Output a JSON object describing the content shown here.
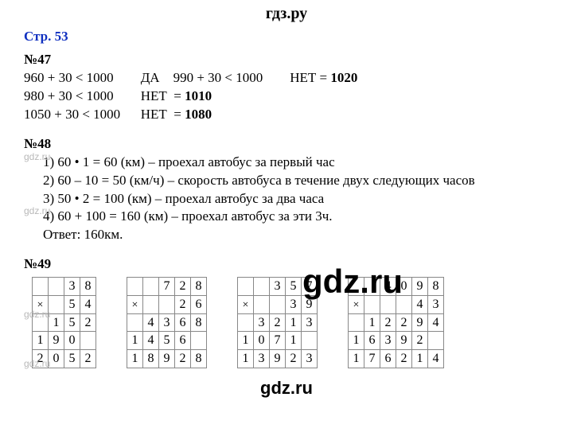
{
  "header": "гдз.ру",
  "page_ref": "Стр. 53",
  "ex47": {
    "num": "№47",
    "rows": [
      {
        "a": "960 + 30 < 1000",
        "b": "ДА",
        "c": "990 + 30 < 1000",
        "d": "НЕТ =",
        "e": "1020"
      },
      {
        "a": "980 + 30 < 1000",
        "b": "НЕТ  =",
        "e": "1010"
      },
      {
        "a": "1050 + 30 < 1000",
        "b": "НЕТ  =",
        "e": "1080"
      }
    ]
  },
  "ex48": {
    "num": "№48",
    "lines": [
      "1) 60 • 1 = 60 (км) – проехал автобус за первый час",
      "2) 60 – 10 = 50 (км/ч) – скорость автобуса в течение двух следующих часов",
      "3) 50 • 2 = 100 (км) – проехал автобус за два часа",
      "4) 60 + 100 = 160 (км) – проехал автобус за эти 3ч."
    ],
    "answer": "Ответ: 160км."
  },
  "ex49": {
    "num": "№49",
    "tables": [
      {
        "cols": 4,
        "grid": [
          [
            " ",
            " ",
            "3",
            "8"
          ],
          [
            "×",
            " ",
            "5",
            "4"
          ],
          [
            " ",
            "1",
            "5",
            "2"
          ],
          [
            "1",
            "9",
            "0",
            " "
          ],
          [
            "2",
            "0",
            "5",
            "2"
          ]
        ]
      },
      {
        "cols": 5,
        "grid": [
          [
            " ",
            " ",
            "7",
            "2",
            "8"
          ],
          [
            "×",
            " ",
            " ",
            "2",
            "6"
          ],
          [
            " ",
            "4",
            "3",
            "6",
            "8"
          ],
          [
            "1",
            "4",
            "5",
            "6",
            " "
          ],
          [
            "1",
            "8",
            "9",
            "2",
            "8"
          ]
        ]
      },
      {
        "cols": 5,
        "grid": [
          [
            " ",
            " ",
            "3",
            "5",
            "7"
          ],
          [
            "×",
            " ",
            " ",
            "3",
            "9"
          ],
          [
            " ",
            "3",
            "2",
            "1",
            "3"
          ],
          [
            "1",
            "0",
            "7",
            "1",
            " "
          ],
          [
            "1",
            "3",
            "9",
            "2",
            "3"
          ]
        ]
      },
      {
        "cols": 6,
        "grid": [
          [
            " ",
            " ",
            "4",
            "0",
            "9",
            "8"
          ],
          [
            "×",
            " ",
            " ",
            " ",
            "4",
            "3"
          ],
          [
            " ",
            "1",
            "2",
            "2",
            "9",
            "4"
          ],
          [
            "1",
            "6",
            "3",
            "9",
            "2",
            " "
          ],
          [
            "1",
            "7",
            "6",
            "2",
            "1",
            "4"
          ]
        ]
      }
    ]
  },
  "watermarks": {
    "small": "gdz.ru",
    "big": "gdz.ru",
    "footer": "gdz.ru"
  },
  "colors": {
    "link": "#1030c0",
    "wm_gray": "#b8b8b8",
    "grid": "#888888",
    "bg": "#ffffff",
    "text": "#000000"
  }
}
